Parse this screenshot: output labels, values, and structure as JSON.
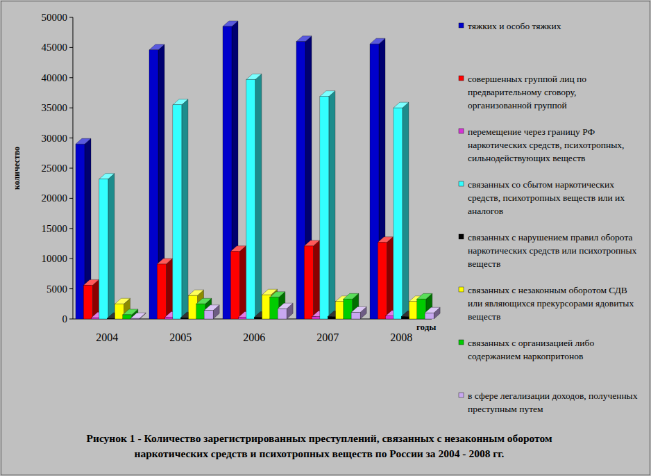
{
  "chart_data": {
    "type": "bar",
    "title": "Рисунок 1 - Количество зарегистрированных преступлений, связанных с незаконным оборотом наркотических средств и психотропных веществ по России за 2004 - 2008 гг.",
    "x_label": "годы",
    "y_label": "количество",
    "categories": [
      "2004",
      "2005",
      "2006",
      "2007",
      "2008"
    ],
    "series": [
      {
        "name": "тяжких и особо тяжких",
        "color": "#0000cc",
        "values": [
          29000,
          44600,
          48500,
          46000,
          45600
        ]
      },
      {
        "name": "совершенных группой лиц по предварительному сговору, организованной группой",
        "color": "#ff0000",
        "values": [
          5600,
          9100,
          11200,
          12100,
          12700
        ]
      },
      {
        "name": "перемещение через границу РФ наркотических средств, психотропных, сильнодействующих веществ",
        "color": "#d633d6",
        "values": [
          200,
          300,
          300,
          400,
          500
        ]
      },
      {
        "name": "связанных со сбытом наркотических средств, психотропных веществ или их аналогов",
        "color": "#33ffff",
        "values": [
          23200,
          35500,
          39700,
          36900,
          35000
        ]
      },
      {
        "name": "связанных с нарушением правил оборота наркотических средств или психотропных веществ",
        "color": "#000000",
        "values": [
          100,
          200,
          300,
          400,
          400
        ]
      },
      {
        "name": "связанных с незаконным оборотом СДВ или являющихся прекурсорами ядовитых веществ",
        "color": "#ffff00",
        "values": [
          2500,
          3900,
          4000,
          2900,
          2900
        ]
      },
      {
        "name": "связанных с организацией либо содержанием наркопритонов",
        "color": "#00cc00",
        "values": [
          700,
          2500,
          3600,
          3300,
          3300
        ]
      },
      {
        "name": "в сфере легализации доходов, полученных преступным путем",
        "color": "#c8a8f0",
        "values": [
          100,
          1400,
          1700,
          1100,
          1000
        ]
      }
    ],
    "ylim": [
      0,
      50000
    ],
    "yticks": [
      0,
      5000,
      10000,
      15000,
      20000,
      25000,
      30000,
      35000,
      40000,
      45000,
      50000
    ],
    "grid": false,
    "legend": "right"
  }
}
